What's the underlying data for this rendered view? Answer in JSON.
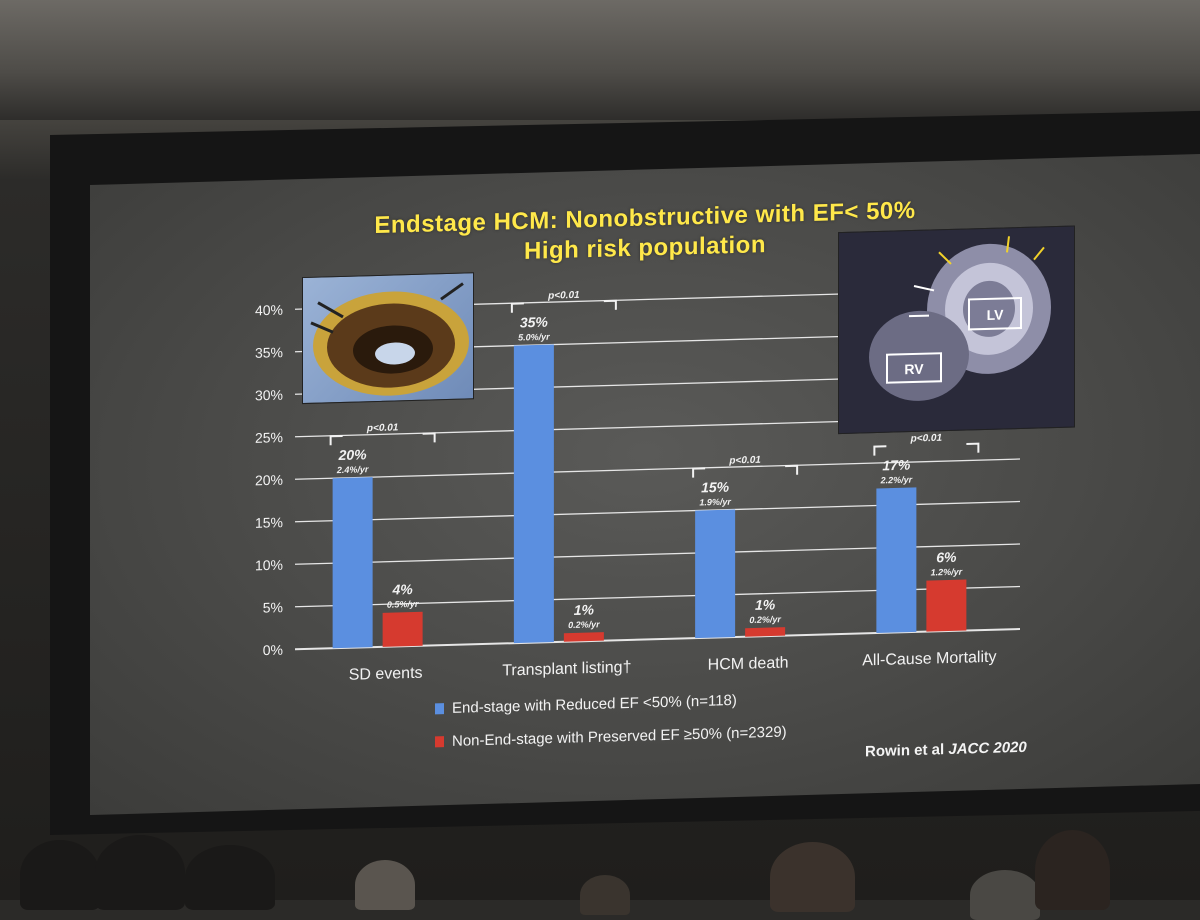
{
  "slide": {
    "title_line1": "Endstage HCM: Nonobstructive with EF< 50%",
    "title_line2": "High risk population",
    "citation_prefix": "Rowin et al",
    "citation_journal": "JACC 2020",
    "mri_labels": {
      "lv": "LV",
      "rv": "RV"
    }
  },
  "colors": {
    "series_blue": "#5b8fe0",
    "series_red": "#d63a2f",
    "title_yellow": "#ffe84a",
    "text": "#f2f2f2"
  },
  "chart_data": {
    "type": "bar",
    "title": "Endstage HCM: Nonobstructive with EF< 50%",
    "subtitle": "High risk population",
    "categories": [
      "SD events",
      "Transplant listing†",
      "HCM death",
      "All-Cause Mortality"
    ],
    "series": [
      {
        "name": "End-stage with Reduced EF <50% (n=118)",
        "values": [
          20,
          35,
          15,
          17
        ],
        "labels": [
          "20%",
          "35%",
          "15%",
          "17%"
        ],
        "rate_labels": [
          "2.4%/yr",
          "5.0%/yr",
          "1.9%/yr",
          "2.2%/yr"
        ]
      },
      {
        "name": "Non-End-stage with Preserved EF ≥50% (n=2329)",
        "values": [
          4,
          1,
          1,
          6
        ],
        "labels": [
          "4%",
          "1%",
          "1%",
          "6%"
        ],
        "rate_labels": [
          "0.5%/yr",
          "0.2%/yr",
          "0.2%/yr",
          "1.2%/yr"
        ]
      }
    ],
    "significance": [
      "p<0.01",
      "p<0.01",
      "p<0.01",
      "p<0.01"
    ],
    "y_ticks": [
      "0%",
      "5%",
      "10%",
      "15%",
      "20%",
      "25%",
      "30%",
      "35%",
      "40%"
    ],
    "ylim": [
      0,
      40
    ],
    "grid": true,
    "legend_position": "bottom"
  }
}
